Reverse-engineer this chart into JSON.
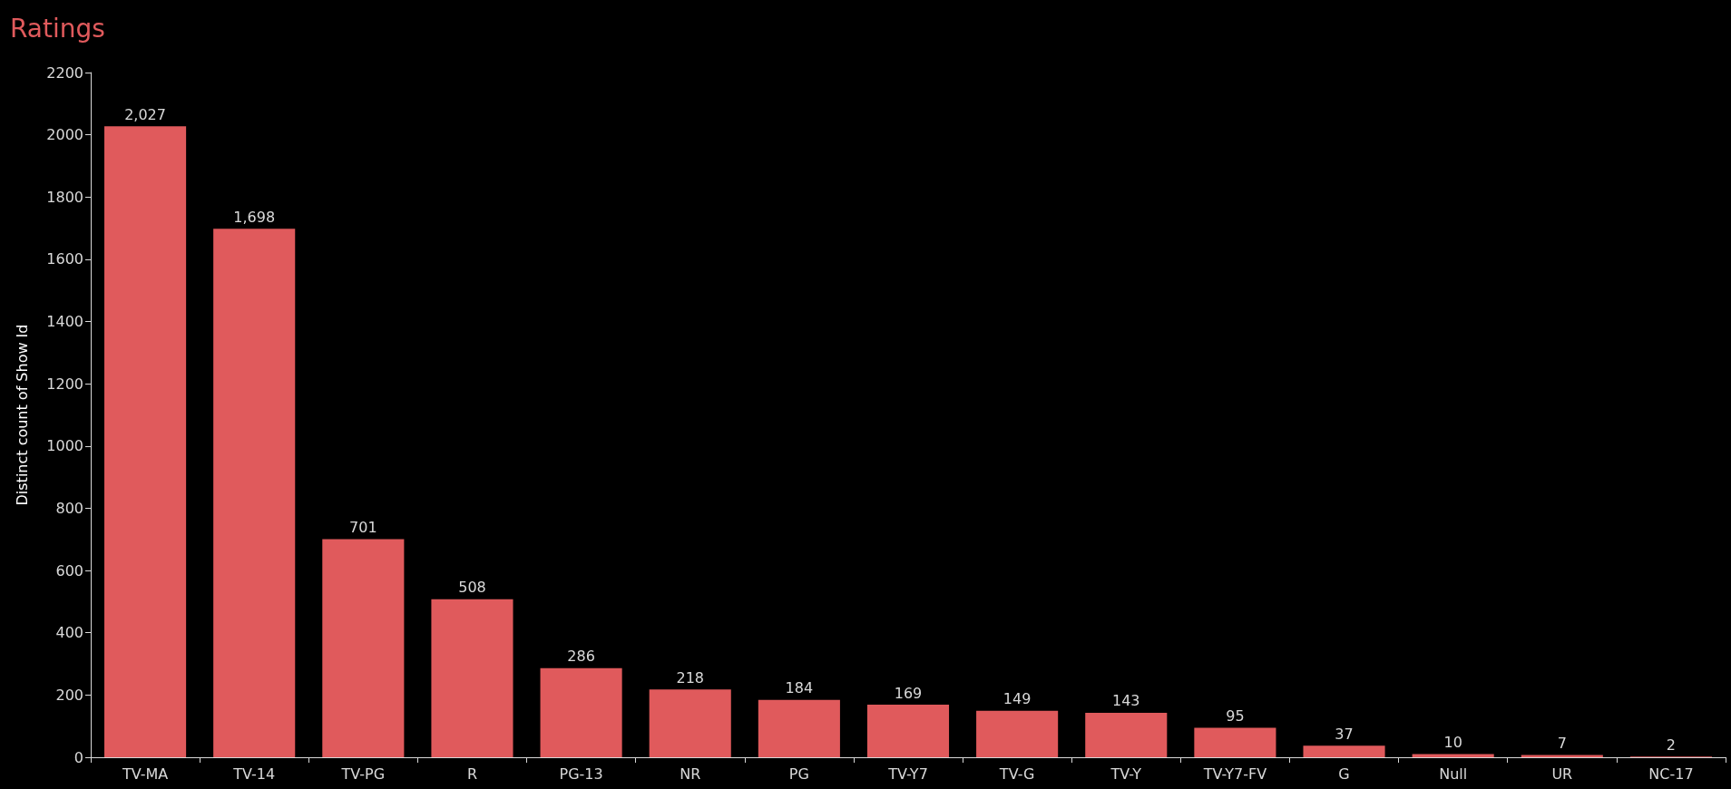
{
  "chart_data": {
    "type": "bar",
    "title": "Ratings",
    "ylabel": "Distinct count of Show Id",
    "categories": [
      "TV-MA",
      "TV-14",
      "TV-PG",
      "R",
      "PG-13",
      "NR",
      "PG",
      "TV-Y7",
      "TV-G",
      "TV-Y",
      "TV-Y7-FV",
      "G",
      "Null",
      "UR",
      "NC-17"
    ],
    "values": [
      2027,
      1698,
      701,
      508,
      286,
      218,
      184,
      169,
      149,
      143,
      95,
      37,
      10,
      7,
      2
    ],
    "value_labels": [
      "2,027",
      "1,698",
      "701",
      "508",
      "286",
      "218",
      "184",
      "169",
      "149",
      "143",
      "95",
      "37",
      "10",
      "7",
      "2"
    ],
    "color": "#e05a5c",
    "ylim": [
      0,
      2200
    ],
    "yticks": [
      0,
      200,
      400,
      600,
      800,
      1000,
      1200,
      1400,
      1600,
      1800,
      2000,
      2200
    ],
    "grid": false
  }
}
